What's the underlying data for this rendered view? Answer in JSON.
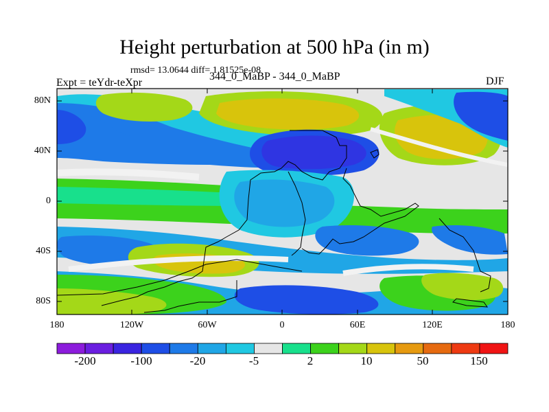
{
  "title": "Height perturbation at 500 hPa (in m)",
  "stats_line": "rmsd= 13.0644 diff= 1.81525e-08",
  "left_label": "Expt = teYdr-teXpr",
  "center_label": "344_0_MaBP - 344_0_MaBP",
  "right_label": "DJF",
  "map": {
    "projection": "cylindrical-equidistant",
    "lon_range": [
      -180,
      180
    ],
    "lat_range": [
      -90,
      90
    ],
    "lat_ticks": [
      "80N",
      "40N",
      "0",
      "40S",
      "80S"
    ],
    "lon_ticks": [
      "180",
      "120W",
      "60W",
      "0",
      "60E",
      "120E",
      "180"
    ],
    "field": "filled contours of 500 hPa height perturbation"
  },
  "colorbar": {
    "colors": [
      "#8c1cdc",
      "#6a1ee0",
      "#3a24e0",
      "#1e4ee6",
      "#1e7ae8",
      "#20a6e6",
      "#20c8e2",
      "#e6e6e6",
      "#18e08c",
      "#3cd21c",
      "#a4d818",
      "#d8c40c",
      "#e69a10",
      "#e66a10",
      "#ee3a12",
      "#f01414"
    ],
    "labels": [
      "-200",
      "-100",
      "-20",
      "-5",
      "2",
      "10",
      "50",
      "150"
    ]
  }
}
